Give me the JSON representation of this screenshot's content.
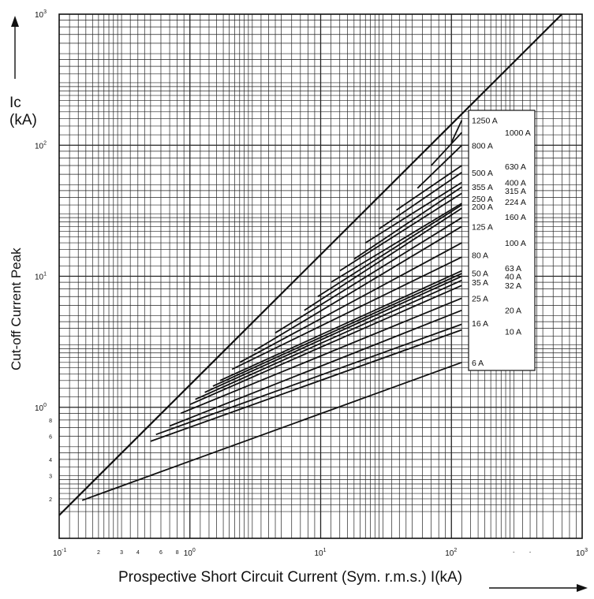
{
  "chart_data": {
    "type": "line",
    "title": "",
    "xlabel": "Prospective Short Circuit Current (Sym. r.m.s.)  I(kA)",
    "ylabel": "Cut-off Current Peak",
    "ic_label": [
      "Ic",
      "(kA)"
    ],
    "xscale": "log",
    "yscale": "log",
    "xlim": [
      0.1,
      1000
    ],
    "ylim": [
      0.1,
      1000
    ],
    "grid": true,
    "legend_placement": "right-inside",
    "x_ticks_major": [
      {
        "base": "10",
        "exp": "-1",
        "v": 0.1
      },
      {
        "base": "10",
        "exp": "0",
        "v": 1
      },
      {
        "base": "10",
        "exp": "1",
        "v": 10
      },
      {
        "base": "10",
        "exp": "2",
        "v": 100
      },
      {
        "base": "10",
        "exp": "3",
        "v": 1000
      }
    ],
    "x_ticks_minor": [
      {
        "label": "2",
        "v": 0.2
      },
      {
        "label": "3",
        "v": 0.3
      },
      {
        "label": "4",
        "v": 0.4
      },
      {
        "label": "6",
        "v": 0.6
      },
      {
        "label": "8",
        "v": 0.8
      },
      {
        "label": "-",
        "v": 300
      },
      {
        "label": "-",
        "v": 400
      }
    ],
    "y_ticks_major": [
      {
        "base": "10",
        "exp": "0",
        "v": 1
      },
      {
        "base": "10",
        "exp": "1",
        "v": 10
      },
      {
        "base": "10",
        "exp": "2",
        "v": 100
      },
      {
        "base": "10",
        "exp": "3",
        "v": 1000
      }
    ],
    "y_ticks_minor": [
      {
        "label": "8",
        "v": 0.8
      },
      {
        "label": "6",
        "v": 0.6
      },
      {
        "label": "4",
        "v": 0.4
      },
      {
        "label": "3",
        "v": 0.3
      },
      {
        "label": "2",
        "v": 0.2
      }
    ],
    "y_axis_bottom_value": 0.14,
    "envelope": {
      "x": [
        0.1,
        700
      ],
      "y": [
        0.15,
        1000
      ]
    },
    "series": [
      {
        "name": "6 A",
        "x": [
          0.15,
          120
        ],
        "y": [
          0.195,
          2.2
        ],
        "label_v": 2.2
      },
      {
        "name": "10 A",
        "x": [
          0.5,
          120
        ],
        "y": [
          0.55,
          3.9
        ],
        "label_v": 3.8
      },
      {
        "name": "16 A",
        "x": [
          0.55,
          120
        ],
        "y": [
          0.62,
          4.3
        ],
        "label_v": 4.4
      },
      {
        "name": "20 A",
        "x": [
          0.7,
          120
        ],
        "y": [
          0.72,
          5.5
        ],
        "label_v": 5.5
      },
      {
        "name": "25 A",
        "x": [
          0.85,
          120
        ],
        "y": [
          0.9,
          6.8
        ],
        "label_v": 6.8
      },
      {
        "name": "32 A",
        "x": [
          1.0,
          120
        ],
        "y": [
          1.05,
          8.5
        ],
        "label_v": 8.5
      },
      {
        "name": "35 A",
        "x": [
          1.1,
          120
        ],
        "y": [
          1.15,
          9.3
        ],
        "label_v": 9.0
      },
      {
        "name": "40 A",
        "x": [
          1.3,
          120
        ],
        "y": [
          1.3,
          10.0
        ],
        "label_v": 10.0
      },
      {
        "name": "50 A",
        "x": [
          1.5,
          120
        ],
        "y": [
          1.45,
          10.5
        ],
        "label_v": 10.6
      },
      {
        "name": "63 A",
        "x": [
          1.7,
          120
        ],
        "y": [
          1.6,
          11.0
        ],
        "label_v": 11.6
      },
      {
        "name": "80 A",
        "x": [
          2.1,
          120
        ],
        "y": [
          1.95,
          14.0
        ],
        "label_v": 14.5
      },
      {
        "name": "100 A",
        "x": [
          2.4,
          120
        ],
        "y": [
          2.2,
          18.0
        ],
        "label_v": 18.0
      },
      {
        "name": "125 A",
        "x": [
          3.1,
          120
        ],
        "y": [
          2.7,
          24.0
        ],
        "label_v": 24.0
      },
      {
        "name": "160 A",
        "x": [
          4.5,
          120
        ],
        "y": [
          3.7,
          28.0
        ],
        "label_v": 28.5
      },
      {
        "name": "200 A",
        "x": [
          7.5,
          120
        ],
        "y": [
          5.5,
          33.0
        ],
        "label_v": 34.0
      },
      {
        "name": "224 A",
        "x": [
          9.5,
          120
        ],
        "y": [
          7.0,
          35.0
        ],
        "label_v": 37.0
      },
      {
        "name": "250 A",
        "x": [
          12,
          120
        ],
        "y": [
          9.0,
          36.0
        ],
        "label_v": 39.0
      },
      {
        "name": "315 A",
        "x": [
          14,
          120
        ],
        "y": [
          11.0,
          43.0
        ],
        "label_v": 45.0
      },
      {
        "name": "355 A",
        "x": [
          18,
          120
        ],
        "y": [
          13.5,
          48.0
        ],
        "label_v": 48.0
      },
      {
        "name": "400 A",
        "x": [
          22,
          120
        ],
        "y": [
          18.0,
          52.0
        ],
        "label_v": 52.0
      },
      {
        "name": "500 A",
        "x": [
          28,
          120
        ],
        "y": [
          23.0,
          62.0
        ],
        "label_v": 62.0
      },
      {
        "name": "630 A",
        "x": [
          38,
          120
        ],
        "y": [
          32.0,
          70.0
        ],
        "label_v": 69.0
      },
      {
        "name": "800 A",
        "x": [
          55,
          120
        ],
        "y": [
          47.0,
          100.0
        ],
        "label_v": 100.0
      },
      {
        "name": "1000 A",
        "x": [
          70,
          120
        ],
        "y": [
          70.0,
          125.0
        ],
        "label_v": 125.0
      },
      {
        "name": "1250 A",
        "x": [
          100,
          120
        ],
        "y": [
          105.0,
          155.0
        ],
        "label_v": 155.0
      }
    ]
  }
}
